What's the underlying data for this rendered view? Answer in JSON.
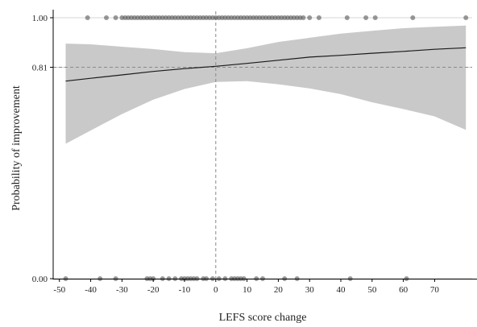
{
  "chart_data": {
    "type": "scatter",
    "title": "",
    "xlabel": "LEFS score change",
    "ylabel": "Probability of improvement",
    "xlim": [
      -52,
      82
    ],
    "ylim": [
      0,
      1
    ],
    "x_ticks": [
      -50,
      -40,
      -30,
      -20,
      -10,
      0,
      10,
      20,
      30,
      40,
      50,
      60,
      70
    ],
    "x_tick_labels": [
      "-50",
      "-40",
      "-30",
      "-20",
      "-10",
      "0",
      "10",
      "20",
      "30",
      "40",
      "50",
      "60",
      "70"
    ],
    "y_ticks": [
      0,
      0.81,
      1
    ],
    "y_tick_labels": [
      "0.00",
      "0.81",
      "1.00"
    ],
    "grid": "horizontal lines at y ticks",
    "reference_lines": {
      "vertical_x": 0,
      "horizontal_y": 0.81
    },
    "series": [
      {
        "type": "points",
        "outcome": 1,
        "x": [
          -41,
          -35,
          -32,
          -30,
          -29,
          -28,
          -27,
          -26,
          -25,
          -24,
          -23,
          -22,
          -21,
          -20,
          -19,
          -18,
          -17,
          -16,
          -15,
          -14,
          -13,
          -12,
          -11,
          -10,
          -9,
          -8,
          -7,
          -6,
          -5,
          -4,
          -3,
          -2,
          -1,
          0,
          1,
          2,
          3,
          4,
          5,
          6,
          7,
          8,
          9,
          10,
          11,
          12,
          13,
          14,
          15,
          16,
          17,
          18,
          19,
          20,
          21,
          22,
          23,
          24,
          25,
          26,
          27,
          28,
          30,
          33,
          42,
          48,
          51,
          63,
          80
        ],
        "y": [
          1,
          1,
          1,
          1,
          1,
          1,
          1,
          1,
          1,
          1,
          1,
          1,
          1,
          1,
          1,
          1,
          1,
          1,
          1,
          1,
          1,
          1,
          1,
          1,
          1,
          1,
          1,
          1,
          1,
          1,
          1,
          1,
          1,
          1,
          1,
          1,
          1,
          1,
          1,
          1,
          1,
          1,
          1,
          1,
          1,
          1,
          1,
          1,
          1,
          1,
          1,
          1,
          1,
          1,
          1,
          1,
          1,
          1,
          1,
          1,
          1,
          1,
          1,
          1,
          1,
          1,
          1,
          1,
          1
        ]
      },
      {
        "type": "points",
        "outcome": 0,
        "x": [
          -48,
          -37,
          -32,
          -22,
          -21,
          -20,
          -17,
          -15,
          -13,
          -11,
          -10,
          -9,
          -8,
          -7,
          -6,
          -4,
          -3,
          -1,
          1,
          3,
          5,
          6,
          7,
          8,
          9,
          13,
          15,
          22,
          26,
          43,
          61
        ],
        "y": [
          0,
          0,
          0,
          0,
          0,
          0,
          0,
          0,
          0,
          0,
          0,
          0,
          0,
          0,
          0,
          0,
          0,
          0,
          0,
          0,
          0,
          0,
          0,
          0,
          0,
          0,
          0,
          0,
          0,
          0,
          0
        ]
      },
      {
        "type": "line",
        "x": [
          -48,
          -40,
          -30,
          -20,
          -10,
          0,
          10,
          20,
          30,
          40,
          50,
          60,
          70,
          80
        ],
        "y": [
          0.757,
          0.768,
          0.781,
          0.794,
          0.805,
          0.814,
          0.825,
          0.837,
          0.849,
          0.856,
          0.864,
          0.871,
          0.879,
          0.885
        ]
      },
      {
        "type": "band",
        "x": [
          -48,
          -40,
          -30,
          -20,
          -10,
          0,
          10,
          20,
          30,
          40,
          50,
          60,
          70,
          80
        ],
        "lower": [
          0.517,
          0.568,
          0.631,
          0.686,
          0.727,
          0.754,
          0.757,
          0.745,
          0.729,
          0.707,
          0.676,
          0.65,
          0.622,
          0.57
        ],
        "upper": [
          0.901,
          0.898,
          0.889,
          0.88,
          0.868,
          0.864,
          0.883,
          0.907,
          0.923,
          0.939,
          0.95,
          0.96,
          0.965,
          0.97
        ]
      }
    ],
    "colors": {
      "points": "#555555",
      "line": "#1a1a1a",
      "band": "#c9c9c9",
      "grid": "#d6d6d6",
      "reference": "#8a8a8a",
      "axis": "#000000"
    }
  }
}
